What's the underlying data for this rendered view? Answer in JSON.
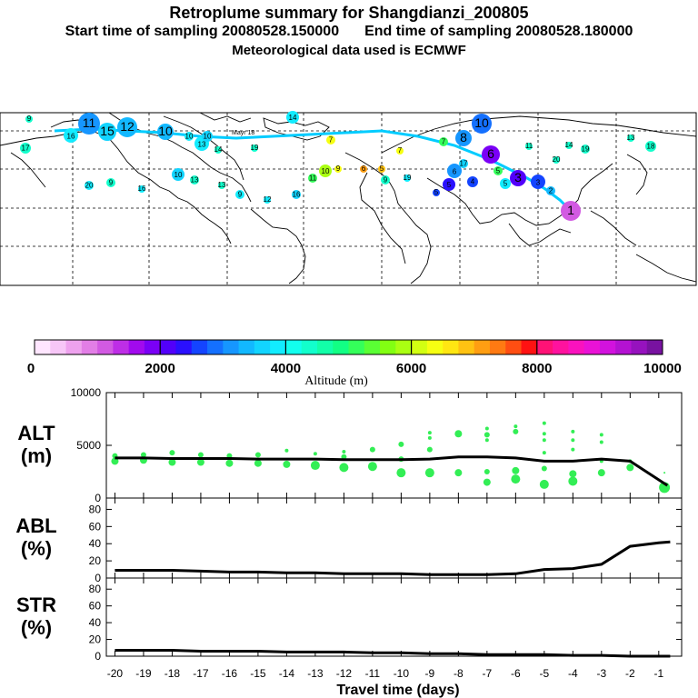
{
  "header": {
    "title": "Retroplume summary for Shangdianzi_200805",
    "start_label": "Start time of sampling 20080528.150000",
    "end_label": "End time of sampling 20080528.180000",
    "met_label": "Meteorological data used is ECMWF"
  },
  "map": {
    "labels": [
      "9",
      "11",
      "16",
      "15",
      "12",
      "14",
      "10",
      "17",
      "13",
      "10",
      "8",
      "7",
      "6",
      "5",
      "4",
      "3",
      "2",
      "1",
      "19",
      "18",
      "20"
    ],
    "overlay_text": "Mayr 18"
  },
  "colorbar": {
    "tick_labels": [
      "0",
      "2000",
      "4000",
      "6000",
      "8000",
      "10000"
    ],
    "xlabel": "Altitude (m)",
    "colors": [
      "#ffe6ff",
      "#f7c6f7",
      "#eea2ee",
      "#e27ee6",
      "#d25ae2",
      "#be2ee6",
      "#a20aee",
      "#7a00f6",
      "#5200fa",
      "#2a10fe",
      "#1444ff",
      "#1470ff",
      "#1696ff",
      "#12b8ff",
      "#12d4ff",
      "#12ecff",
      "#12ffee",
      "#12ffcc",
      "#12ffa8",
      "#12ff84",
      "#34ff5a",
      "#5aff34",
      "#82ff12",
      "#aaff12",
      "#d2ff12",
      "#f6ff12",
      "#ffe612",
      "#ffc212",
      "#ff9e12",
      "#ff7a12",
      "#ff4e12",
      "#ff1212",
      "#ff1276",
      "#ff129e",
      "#fa12be",
      "#ea12d6",
      "#d212de",
      "#b412d2",
      "#9612be",
      "#7812a0"
    ]
  },
  "chart_data": [
    {
      "type": "scatter",
      "panel": "ALT",
      "ylabel": "ALT\n(m)",
      "ylabel_line1": "ALT",
      "ylabel_line2": "(m)",
      "ylim": [
        0,
        10000
      ],
      "yticks": [
        "0",
        "5000",
        "10000"
      ],
      "xlim": [
        -20,
        -0.5
      ],
      "line": {
        "name": "mean altitude",
        "x": [
          -20,
          -19,
          -18,
          -17,
          -16,
          -15,
          -14,
          -13,
          -12,
          -11,
          -10,
          -9,
          -8,
          -7,
          -6,
          -5,
          -4,
          -3,
          -2,
          -0.7
        ],
        "y": [
          3800,
          3800,
          3750,
          3750,
          3750,
          3700,
          3700,
          3700,
          3650,
          3650,
          3650,
          3700,
          3900,
          3900,
          3800,
          3500,
          3500,
          3700,
          3500,
          1200
        ]
      },
      "points": [
        {
          "x": -20,
          "y": 3500,
          "s": 4
        },
        {
          "x": -20,
          "y": 4000,
          "s": 3
        },
        {
          "x": -19,
          "y": 3600,
          "s": 4
        },
        {
          "x": -19,
          "y": 4100,
          "s": 3
        },
        {
          "x": -18,
          "y": 3400,
          "s": 4
        },
        {
          "x": -18,
          "y": 4300,
          "s": 3
        },
        {
          "x": -17,
          "y": 3400,
          "s": 4
        },
        {
          "x": -17,
          "y": 4100,
          "s": 3
        },
        {
          "x": -16,
          "y": 3300,
          "s": 4
        },
        {
          "x": -16,
          "y": 4000,
          "s": 3
        },
        {
          "x": -15,
          "y": 3300,
          "s": 4
        },
        {
          "x": -15,
          "y": 4100,
          "s": 3
        },
        {
          "x": -14,
          "y": 3200,
          "s": 4
        },
        {
          "x": -14,
          "y": 4500,
          "s": 2
        },
        {
          "x": -13,
          "y": 3100,
          "s": 5
        },
        {
          "x": -13,
          "y": 4200,
          "s": 2
        },
        {
          "x": -12,
          "y": 2900,
          "s": 5
        },
        {
          "x": -12,
          "y": 3900,
          "s": 3
        },
        {
          "x": -12,
          "y": 4400,
          "s": 2
        },
        {
          "x": -11,
          "y": 3000,
          "s": 5
        },
        {
          "x": -11,
          "y": 4600,
          "s": 3
        },
        {
          "x": -10,
          "y": 2400,
          "s": 5
        },
        {
          "x": -10,
          "y": 3700,
          "s": 3
        },
        {
          "x": -10,
          "y": 5100,
          "s": 3
        },
        {
          "x": -9,
          "y": 2400,
          "s": 5
        },
        {
          "x": -9,
          "y": 4600,
          "s": 3
        },
        {
          "x": -9,
          "y": 5700,
          "s": 2
        },
        {
          "x": -9,
          "y": 6200,
          "s": 2
        },
        {
          "x": -8,
          "y": 2400,
          "s": 4
        },
        {
          "x": -8,
          "y": 6100,
          "s": 4
        },
        {
          "x": -7,
          "y": 1500,
          "s": 4
        },
        {
          "x": -7,
          "y": 2500,
          "s": 3
        },
        {
          "x": -7,
          "y": 5500,
          "s": 2
        },
        {
          "x": -7,
          "y": 6000,
          "s": 3
        },
        {
          "x": -7,
          "y": 6600,
          "s": 2
        },
        {
          "x": -6,
          "y": 1800,
          "s": 5
        },
        {
          "x": -6,
          "y": 2600,
          "s": 4
        },
        {
          "x": -6,
          "y": 6300,
          "s": 3
        },
        {
          "x": -6,
          "y": 6800,
          "s": 2
        },
        {
          "x": -5,
          "y": 1300,
          "s": 5
        },
        {
          "x": -5,
          "y": 2800,
          "s": 3
        },
        {
          "x": -5,
          "y": 4300,
          "s": 2
        },
        {
          "x": -5,
          "y": 5500,
          "s": 2
        },
        {
          "x": -5,
          "y": 6100,
          "s": 2
        },
        {
          "x": -5,
          "y": 7100,
          "s": 2
        },
        {
          "x": -4,
          "y": 1600,
          "s": 5
        },
        {
          "x": -4,
          "y": 2300,
          "s": 4
        },
        {
          "x": -4,
          "y": 4600,
          "s": 2
        },
        {
          "x": -4,
          "y": 5500,
          "s": 2
        },
        {
          "x": -4,
          "y": 6300,
          "s": 2
        },
        {
          "x": -3,
          "y": 2400,
          "s": 4
        },
        {
          "x": -3,
          "y": 3500,
          "s": 2
        },
        {
          "x": -3,
          "y": 5300,
          "s": 2
        },
        {
          "x": -3,
          "y": 6000,
          "s": 2
        },
        {
          "x": -2,
          "y": 2900,
          "s": 4
        },
        {
          "x": -2,
          "y": 3500,
          "s": 2
        },
        {
          "x": -0.8,
          "y": 1000,
          "s": 6
        },
        {
          "x": -0.8,
          "y": 2400,
          "s": 1
        }
      ]
    },
    {
      "type": "line",
      "panel": "ABL",
      "ylabel_line1": "ABL",
      "ylabel_line2": "(%)",
      "ylim": [
        0,
        90
      ],
      "yticks": [
        "0",
        "20",
        "40",
        "60",
        "80"
      ],
      "x": [
        -20,
        -19,
        -18,
        -17,
        -16,
        -15,
        -14,
        -13,
        -12,
        -11,
        -10,
        -9,
        -8,
        -7,
        -6,
        -5,
        -4,
        -3,
        -2,
        -1,
        -0.6
      ],
      "y": [
        9,
        9,
        9,
        8,
        7,
        7,
        6,
        6,
        5,
        5,
        5,
        4,
        4,
        4,
        5,
        10,
        11,
        16,
        37,
        41,
        42
      ]
    },
    {
      "type": "line",
      "panel": "STR",
      "ylabel_line1": "STR",
      "ylabel_line2": "(%)",
      "ylim": [
        0,
        90
      ],
      "yticks": [
        "0",
        "20",
        "40",
        "60",
        "80"
      ],
      "xlabel": "Travel time (days)",
      "xticks": [
        "-20",
        "-19",
        "-18",
        "-17",
        "-16",
        "-15",
        "-14",
        "-13",
        "-12",
        "-11",
        "-10",
        "-9",
        "-8",
        "-7",
        "-6",
        "-5",
        "-4",
        "-3",
        "-2",
        "-1"
      ],
      "x": [
        -20,
        -19,
        -18,
        -17,
        -16,
        -15,
        -14,
        -13,
        -12,
        -11,
        -10,
        -9,
        -8,
        -7,
        -6,
        -5,
        -4,
        -3,
        -2,
        -1,
        -0.6
      ],
      "y": [
        7,
        7,
        7,
        6,
        6,
        6,
        5,
        5,
        5,
        4,
        4,
        3,
        3,
        2,
        2,
        2,
        1,
        1,
        0,
        0,
        0
      ]
    }
  ]
}
